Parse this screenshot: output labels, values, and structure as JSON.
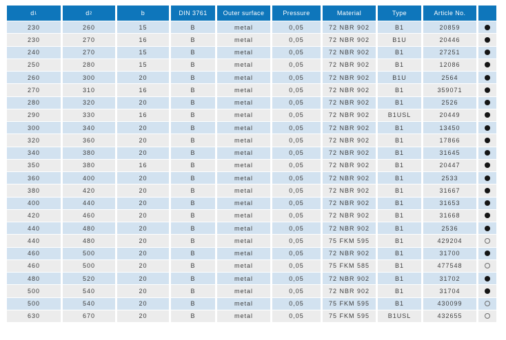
{
  "colors": {
    "header_bg": "#0e76bb",
    "row_blue": "#d2e2f0",
    "row_gray": "#ececec",
    "header_text": "#ffffff",
    "cell_text": "#3d3d3d",
    "dot_color": "#141414",
    "dot_outline": "#6b6b6b",
    "page_bg": "#ffffff"
  },
  "table": {
    "columns": [
      {
        "label": "d",
        "sub": "1"
      },
      {
        "label": "d",
        "sub": "2"
      },
      {
        "label": "b"
      },
      {
        "label": "DIN 3761"
      },
      {
        "label": "Outer surface"
      },
      {
        "label": "Pressure"
      },
      {
        "label": "Material"
      },
      {
        "label": "Type"
      },
      {
        "label": "Article No."
      },
      {
        "label": ""
      }
    ],
    "rows": [
      [
        "230",
        "260",
        "15",
        "B",
        "metal",
        "0,05",
        "72 NBR 902",
        "B1",
        "20859",
        "filled"
      ],
      [
        "230",
        "270",
        "16",
        "B",
        "metal",
        "0,05",
        "72 NBR 902",
        "B1U",
        "20446",
        "filled"
      ],
      [
        "240",
        "270",
        "15",
        "B",
        "metal",
        "0,05",
        "72 NBR 902",
        "B1",
        "27251",
        "filled"
      ],
      [
        "250",
        "280",
        "15",
        "B",
        "metal",
        "0,05",
        "72 NBR 902",
        "B1",
        "12086",
        "filled"
      ],
      [
        "260",
        "300",
        "20",
        "B",
        "metal",
        "0,05",
        "72 NBR 902",
        "B1U",
        "2564",
        "filled"
      ],
      [
        "270",
        "310",
        "16",
        "B",
        "metal",
        "0,05",
        "72 NBR 902",
        "B1",
        "359071",
        "filled"
      ],
      [
        "280",
        "320",
        "20",
        "B",
        "metal",
        "0,05",
        "72 NBR 902",
        "B1",
        "2526",
        "filled"
      ],
      [
        "290",
        "330",
        "16",
        "B",
        "metal",
        "0,05",
        "72 NBR 902",
        "B1USL",
        "20449",
        "filled"
      ],
      [
        "300",
        "340",
        "20",
        "B",
        "metal",
        "0,05",
        "72 NBR 902",
        "B1",
        "13450",
        "filled"
      ],
      [
        "320",
        "360",
        "20",
        "B",
        "metal",
        "0,05",
        "72 NBR 902",
        "B1",
        "17866",
        "filled"
      ],
      [
        "340",
        "380",
        "20",
        "B",
        "metal",
        "0,05",
        "72 NBR 902",
        "B1",
        "31645",
        "filled"
      ],
      [
        "350",
        "380",
        "16",
        "B",
        "metal",
        "0,05",
        "72 NBR 902",
        "B1",
        "20447",
        "filled"
      ],
      [
        "360",
        "400",
        "20",
        "B",
        "metal",
        "0,05",
        "72 NBR 902",
        "B1",
        "2533",
        "filled"
      ],
      [
        "380",
        "420",
        "20",
        "B",
        "metal",
        "0,05",
        "72 NBR 902",
        "B1",
        "31667",
        "filled"
      ],
      [
        "400",
        "440",
        "20",
        "B",
        "metal",
        "0,05",
        "72 NBR 902",
        "B1",
        "31653",
        "filled"
      ],
      [
        "420",
        "460",
        "20",
        "B",
        "metal",
        "0,05",
        "72 NBR 902",
        "B1",
        "31668",
        "filled"
      ],
      [
        "440",
        "480",
        "20",
        "B",
        "metal",
        "0,05",
        "72 NBR 902",
        "B1",
        "2536",
        "filled"
      ],
      [
        "440",
        "480",
        "20",
        "B",
        "metal",
        "0,05",
        "75 FKM 595",
        "B1",
        "429204",
        "hollow"
      ],
      [
        "460",
        "500",
        "20",
        "B",
        "metal",
        "0,05",
        "72 NBR 902",
        "B1",
        "31700",
        "filled"
      ],
      [
        "460",
        "500",
        "20",
        "B",
        "metal",
        "0,05",
        "75 FKM 585",
        "B1",
        "477548",
        "hollow"
      ],
      [
        "480",
        "520",
        "20",
        "B",
        "metal",
        "0,05",
        "72 NBR 902",
        "B1",
        "31702",
        "filled"
      ],
      [
        "500",
        "540",
        "20",
        "B",
        "metal",
        "0,05",
        "72 NBR 902",
        "B1",
        "31704",
        "filled"
      ],
      [
        "500",
        "540",
        "20",
        "B",
        "metal",
        "0,05",
        "75 FKM 595",
        "B1",
        "430099",
        "hollow"
      ],
      [
        "630",
        "670",
        "20",
        "B",
        "metal",
        "0,05",
        "75 FKM 595",
        "B1USL",
        "432655",
        "hollow"
      ]
    ]
  }
}
